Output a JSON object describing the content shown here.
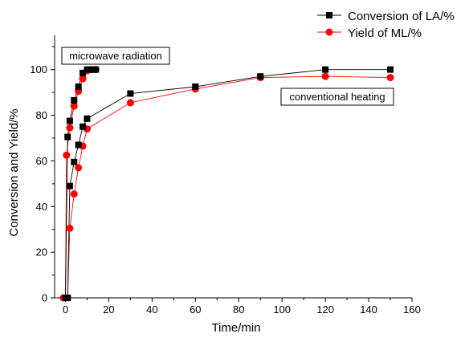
{
  "chart_data": {
    "type": "scatter",
    "title": "",
    "xlabel": "Time/min",
    "ylabel": "Conversion and Yield/%",
    "xlim": [
      -5,
      160
    ],
    "ylim": [
      0,
      115
    ],
    "x_ticks": [
      0,
      20,
      40,
      60,
      80,
      100,
      120,
      140,
      160
    ],
    "y_ticks": [
      0,
      20,
      40,
      60,
      80,
      100
    ],
    "grid": false,
    "legend_position": "top-right",
    "annotations": [
      "microwave radiation",
      "conventional heating"
    ],
    "series": [
      {
        "name": "Conversion of LA/%",
        "color": "#000000",
        "marker": "square",
        "groups": [
          {
            "x": [
              0,
              1,
              2,
              4,
              6,
              8,
              10,
              12,
              14
            ],
            "y": [
              0,
              70.5,
              77.5,
              86.5,
              92.5,
              98.5,
              100,
              100,
              100
            ]
          },
          {
            "x": [
              0,
              1,
              2,
              4,
              6,
              8,
              10,
              30,
              60,
              90,
              120,
              150
            ],
            "y": [
              0,
              0,
              49,
              59.5,
              67,
              75,
              78.5,
              89.5,
              92.5,
              97,
              100,
              100
            ]
          }
        ]
      },
      {
        "name": "Yield of ML/%",
        "color": "#ff0000",
        "marker": "circle",
        "groups": [
          {
            "x": [
              0,
              0.5,
              2,
              4,
              6,
              8,
              10,
              12,
              14
            ],
            "y": [
              0,
              62.5,
              74.5,
              84,
              90.5,
              96,
              99.5,
              100,
              100
            ]
          },
          {
            "x": [
              -1,
              1,
              2,
              4,
              6,
              8,
              10,
              30,
              60,
              90,
              120,
              150
            ],
            "y": [
              0,
              0,
              30.5,
              45.5,
              57,
              66.5,
              74,
              85.5,
              91.5,
              96.5,
              97,
              96.5
            ]
          }
        ]
      }
    ]
  }
}
